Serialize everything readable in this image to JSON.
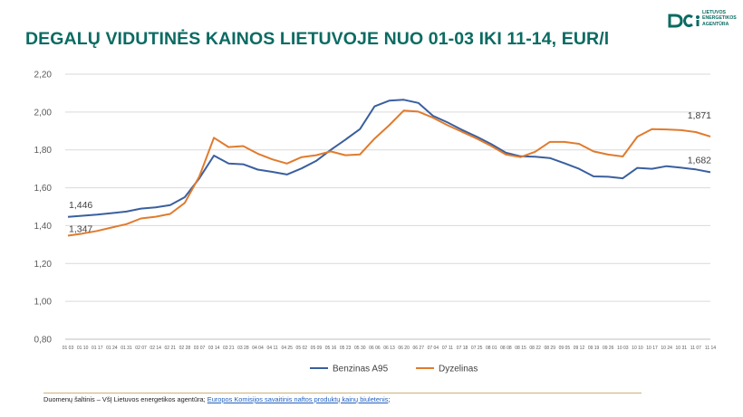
{
  "title": "DEGALŲ VIDUTINĖS KAINOS LIETUVOJE NUO 01-03 IKI 11-14, EUR/l",
  "logo": {
    "lines": [
      "LIETUVOS",
      "ENERGETIKOS",
      "AGENTŪRA"
    ],
    "color": "#0b6b62"
  },
  "source": {
    "prefix": "Duomenų šaltinis – VšĮ Lietuvos energetikos agentūra; ",
    "link_text": "Europos Komisijos savaitinis naftos produktų kainų biuletenis",
    "suffix": ";"
  },
  "chart_data": {
    "type": "line",
    "x": [
      "01 03",
      "01 10",
      "01 17",
      "01 24",
      "01 31",
      "02 07",
      "02 14",
      "02 21",
      "02 28",
      "03 07",
      "03 14",
      "03 21",
      "03 28",
      "04 04",
      "04 11",
      "04 25",
      "05 02",
      "05 09",
      "05 16",
      "05 23",
      "05 30",
      "06 06",
      "06 13",
      "06 20",
      "06 27",
      "07 04",
      "07 11",
      "07 18",
      "07 25",
      "08 01",
      "08 08",
      "08 15",
      "08 22",
      "08 29",
      "09 05",
      "09 12",
      "09 19",
      "09 26",
      "10 03",
      "10 10",
      "10 17",
      "10 24",
      "10 31",
      "11 07",
      "11 14"
    ],
    "series": [
      {
        "name": "Benzinas A95",
        "color": "#3a5f9e",
        "values": [
          1.446,
          1.452,
          1.458,
          1.466,
          1.474,
          1.49,
          1.496,
          1.508,
          1.55,
          1.65,
          1.77,
          1.728,
          1.724,
          1.696,
          1.684,
          1.67,
          1.702,
          1.742,
          1.8,
          1.854,
          1.91,
          2.03,
          2.06,
          2.065,
          2.048,
          1.98,
          1.945,
          1.905,
          1.87,
          1.83,
          1.785,
          1.766,
          1.764,
          1.757,
          1.73,
          1.7,
          1.66,
          1.658,
          1.65,
          1.705,
          1.7,
          1.714,
          1.706,
          1.697,
          1.682
        ]
      },
      {
        "name": "Dyzelinas",
        "color": "#e07b2e",
        "values": [
          1.347,
          1.358,
          1.372,
          1.39,
          1.408,
          1.438,
          1.447,
          1.462,
          1.52,
          1.66,
          1.864,
          1.815,
          1.82,
          1.78,
          1.75,
          1.728,
          1.762,
          1.772,
          1.792,
          1.772,
          1.776,
          1.86,
          1.93,
          2.008,
          2.002,
          1.97,
          1.93,
          1.895,
          1.86,
          1.82,
          1.775,
          1.762,
          1.79,
          1.842,
          1.842,
          1.832,
          1.792,
          1.775,
          1.765,
          1.87,
          1.91,
          1.908,
          1.904,
          1.894,
          1.871
        ]
      }
    ],
    "annotations": [
      {
        "series": 0,
        "index": 0,
        "text": "1,446"
      },
      {
        "series": 1,
        "index": 0,
        "text": "1,347"
      },
      {
        "series": 1,
        "index": 44,
        "text": "1,871"
      },
      {
        "series": 0,
        "index": 44,
        "text": "1,682"
      }
    ],
    "ylim": [
      0.8,
      2.2
    ],
    "yticks": [
      0.8,
      1.0,
      1.2,
      1.4,
      1.6,
      1.8,
      2.0,
      2.2
    ],
    "ytick_labels": [
      "0,80",
      "1,00",
      "1,20",
      "1,40",
      "1,60",
      "1,80",
      "2,00",
      "2,20"
    ],
    "grid": true,
    "legend_position": "bottom",
    "title": "",
    "xlabel": "",
    "ylabel": ""
  }
}
